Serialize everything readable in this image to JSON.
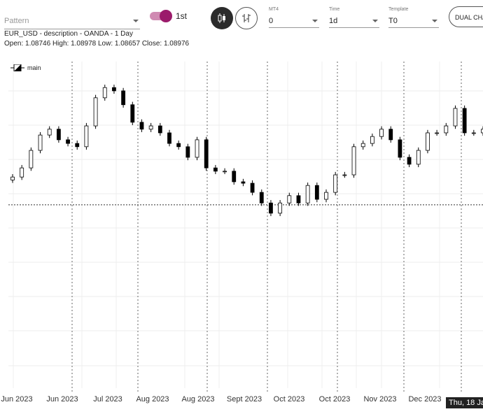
{
  "toolbar": {
    "pattern_placeholder": "Pattern",
    "toggle_label": "1st",
    "toggle_on": true,
    "accent": "#9b1b6b",
    "mt4": {
      "label": "MT4",
      "value": "0"
    },
    "time": {
      "label": "Time",
      "value": "1d"
    },
    "template": {
      "label": "Template",
      "value": "T0"
    },
    "dual_chart_label": "DUAL CHA"
  },
  "info": {
    "title": "EUR_USD - description - OANDA - 1 Day",
    "ohlc": "Open: 1.08746 High: 1.08978 Low: 1.08657 Close: 1.08976"
  },
  "legend": {
    "label": "main"
  },
  "tooltip": "Thu, 18 Ja",
  "chart_data": {
    "type": "candlestick",
    "series_name": "main",
    "x_tick_labels": [
      "Jun 2023",
      "Jun 2023",
      "Jul 2023",
      "Aug 2023",
      "Aug 2023",
      "Sept 2023",
      "Oct 2023",
      "Oct 2023",
      "Nov 2023",
      "Dec 2023"
    ],
    "ylim": [
      1.04,
      1.13
    ],
    "crosshair_price": 1.0902,
    "first_open": 1.097,
    "closes": [
      1.0978,
      1.1003,
      1.1051,
      1.1093,
      1.1109,
      1.108,
      1.107,
      1.1061,
      1.1118,
      1.1195,
      1.1223,
      1.1214,
      1.1176,
      1.1128,
      1.1109,
      1.1118,
      1.1099,
      1.107,
      1.1061,
      1.1032,
      1.108,
      1.1003,
      1.0994,
      1.0994,
      1.0965,
      1.0961,
      1.0936,
      1.0907,
      1.0879,
      1.0907,
      1.0927,
      1.0907,
      1.0955,
      1.0917,
      1.0936,
      1.0984,
      1.0984,
      1.1061,
      1.107,
      1.1089,
      1.1109,
      1.108,
      1.1032,
      1.1013,
      1.1051,
      1.1099,
      1.1099,
      1.1118,
      1.1166,
      1.1099,
      1.1099,
      1.1109
    ],
    "grid": true
  }
}
